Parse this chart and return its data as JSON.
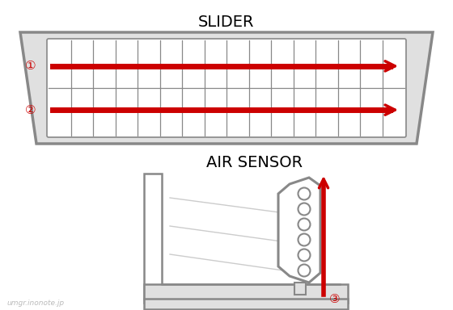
{
  "bg_color": "#ffffff",
  "title_slider": "SLIDER",
  "title_air": "AIR SENSOR",
  "watermark": "umgr.inonote.jp",
  "red": "#cc0000",
  "gray_outer": "#888888",
  "gray_grid": "#888888",
  "gray_fill": "#e0e0e0",
  "gray_light": "#cccccc",
  "label1": "①",
  "label2": "②",
  "label3": "③",
  "grid_cols": 16,
  "grid_rows": 2
}
